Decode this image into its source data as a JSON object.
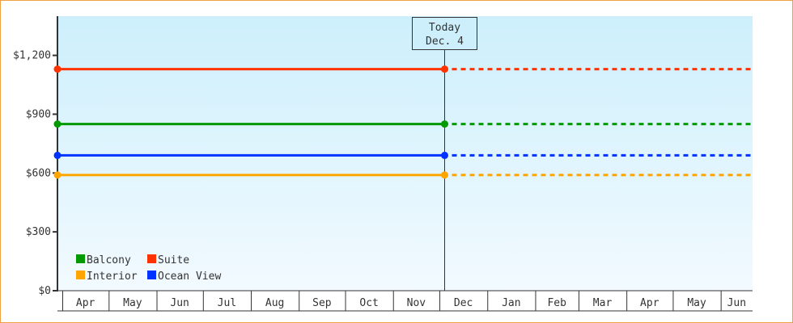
{
  "chart_data": {
    "type": "line",
    "y_ticks": [
      {
        "value": 0,
        "label": "$0"
      },
      {
        "value": 300,
        "label": "$300"
      },
      {
        "value": 600,
        "label": "$600"
      },
      {
        "value": 900,
        "label": "$900"
      },
      {
        "value": 1200,
        "label": "$1,200"
      }
    ],
    "ylim": [
      0,
      1400
    ],
    "x_months": [
      {
        "label": "Apr",
        "days": 30
      },
      {
        "label": "May",
        "days": 31
      },
      {
        "label": "Jun",
        "days": 30
      },
      {
        "label": "Jul",
        "days": 31
      },
      {
        "label": "Aug",
        "days": 31
      },
      {
        "label": "Sep",
        "days": 30
      },
      {
        "label": "Oct",
        "days": 31
      },
      {
        "label": "Nov",
        "days": 30
      },
      {
        "label": "Dec",
        "days": 31
      },
      {
        "label": "Jan",
        "days": 31
      },
      {
        "label": "Feb",
        "days": 28
      },
      {
        "label": "Mar",
        "days": 31
      },
      {
        "label": "Apr",
        "days": 30
      },
      {
        "label": "May",
        "days": 31
      },
      {
        "label": "Jun",
        "days": 30
      }
    ],
    "today": {
      "line1": "Today",
      "line2": "Dec. 4"
    },
    "background_gradient": [
      "#cdeffc",
      "#f2faff"
    ],
    "series": [
      {
        "name": "Balcony",
        "color": "#009900",
        "value": 850
      },
      {
        "name": "Suite",
        "color": "#ff3300",
        "value": 1130
      },
      {
        "name": "Interior",
        "color": "#ffa500",
        "value": 590
      },
      {
        "name": "Ocean View",
        "color": "#0033ff",
        "value": 690
      }
    ],
    "legend": "bottom-left",
    "past_style": "solid",
    "future_style": "dotted"
  }
}
